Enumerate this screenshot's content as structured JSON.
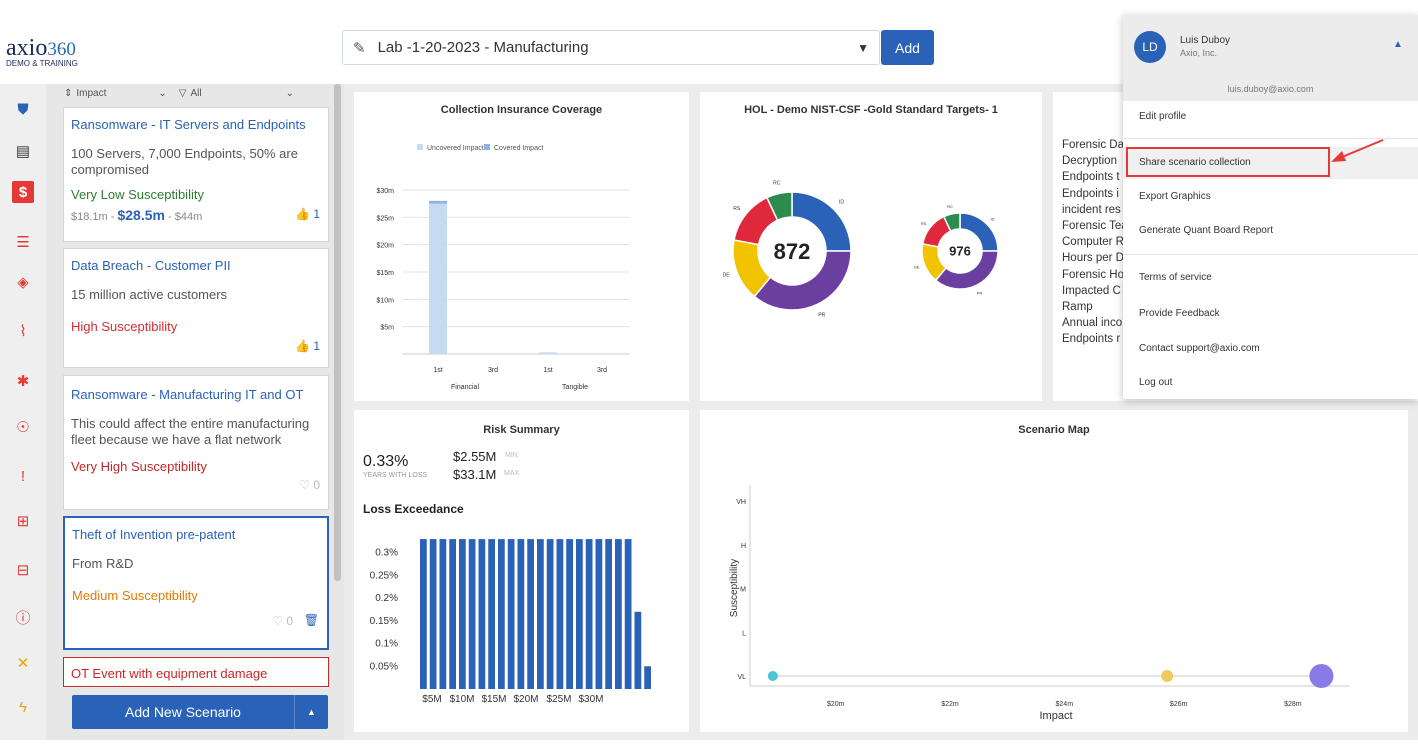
{
  "logo": {
    "brand": "axio",
    "number": "360",
    "subtitle": "DEMO & TRAINING"
  },
  "collection": {
    "selected": "Lab -1-20-2023 - Manufacturing",
    "add_label": "Add"
  },
  "filters": {
    "sort": "Impact",
    "filter": "All"
  },
  "scenarios": [
    {
      "title": "Ransomware - IT Servers and Endpoints",
      "desc": "100 Servers, 7,000 Endpoints, 50% are compromised",
      "susc": "Very Low Susceptibility",
      "susc_color": "#2e7d32",
      "r_min": "$18.1m",
      "r_mid": "$28.5m",
      "r_max": "$44m",
      "likes": "1"
    },
    {
      "title": "Data Breach - Customer PII",
      "desc": "15 million active customers",
      "susc": "High Susceptibility",
      "susc_color": "#d32f2f",
      "likes": "1"
    },
    {
      "title": "Ransomware - Manufacturing IT and OT",
      "desc": "This could affect the entire manufacturing fleet because we have a flat network",
      "susc": "Very High Susceptibility",
      "susc_color": "#c62828",
      "likes": "0"
    },
    {
      "title": "Theft of Invention pre-patent",
      "desc": "From R&D",
      "susc": "Medium Susceptibility",
      "susc_color": "#e07b00",
      "likes": "0"
    },
    {
      "title": "OT Event with equipment damage"
    }
  ],
  "add_scenario_label": "Add New Scenario",
  "insurance": {
    "title": "Collection Insurance Coverage",
    "chart_data": {
      "type": "bar",
      "title": "Collection Insurance Coverage",
      "legend": [
        "Uncovered Impact",
        "Covered Impact"
      ],
      "yticks": [
        "$30m",
        "$25m",
        "$20m",
        "$15m",
        "$10m",
        "$5m"
      ],
      "ylim": [
        0,
        32
      ],
      "groups": [
        "Financial",
        "Tangible"
      ],
      "categories": [
        "1st",
        "3rd",
        "1st",
        "3rd"
      ],
      "series": [
        {
          "name": "Uncovered Impact",
          "values": [
            27.5,
            0,
            0.3,
            0
          ]
        },
        {
          "name": "Covered Impact",
          "values": [
            0.5,
            0,
            0,
            0
          ]
        }
      ]
    }
  },
  "nist": {
    "title": "HOL - Demo NIST-CSF -Gold Standard Targets- 1",
    "score1": "872",
    "score2": "976",
    "chart_data": {
      "type": "pie",
      "categories": [
        "ID",
        "PR",
        "DE",
        "RS",
        "RC"
      ],
      "values": [
        25,
        36,
        17,
        15,
        7
      ],
      "colors": [
        "#2a62b8",
        "#6a3fa0",
        "#f2c300",
        "#e0283c",
        "#2e8b4e"
      ]
    }
  },
  "legend_list": [
    "Forensic Da",
    "Decryption",
    "Endpoints t",
    "Endpoints i",
    "incident res",
    "Forensic Tea",
    "Computer R",
    "Hours per D",
    "Forensic Ho",
    "Impacted C",
    "Ramp",
    "Annual inco",
    "Endpoints r"
  ],
  "risk": {
    "title": "Risk Summary",
    "pct": "0.33%",
    "pct_label": "YEARS WITH LOSS",
    "min": "$2.55M",
    "min_label": "MIN",
    "max": "$33.1M",
    "max_label": "MAX",
    "exceed_title": "Loss Exceedance",
    "chart_data": {
      "type": "bar",
      "title": "Loss Exceedance",
      "yticks": [
        "0.3%",
        "0.25%",
        "0.2%",
        "0.15%",
        "0.1%",
        "0.05%"
      ],
      "ylim": [
        0,
        0.35
      ],
      "xticks": [
        "$5M",
        "$10M",
        "$15M",
        "$20M",
        "$25M",
        "$30M"
      ],
      "values": [
        0.33,
        0.33,
        0.33,
        0.33,
        0.33,
        0.33,
        0.33,
        0.33,
        0.33,
        0.33,
        0.33,
        0.33,
        0.33,
        0.33,
        0.33,
        0.33,
        0.33,
        0.33,
        0.33,
        0.33,
        0.33,
        0.33,
        0.17,
        0.05
      ]
    }
  },
  "scenario_map": {
    "title": "Scenario Map",
    "chart_data": {
      "type": "scatter",
      "xlabel": "Impact",
      "ylabel": "Susceptibility",
      "xticks": [
        "$20m",
        "$22m",
        "$24m",
        "$26m",
        "$28m"
      ],
      "xlim": [
        18.5,
        29
      ],
      "yticks": [
        "VH",
        "H",
        "M",
        "L",
        "VL"
      ],
      "points": [
        {
          "x": 18.9,
          "y": "VL",
          "size": 5,
          "color": "#4cc4d4"
        },
        {
          "x": 25.8,
          "y": "VL",
          "size": 6,
          "color": "#f2c860"
        },
        {
          "x": 28.5,
          "y": "VL",
          "size": 12,
          "color": "#8a7ae8"
        }
      ]
    }
  },
  "user_menu": {
    "initials": "LD",
    "name": "Luis Duboy",
    "company": "Axio, Inc.",
    "email": "luis.duboy@axio.com",
    "items": [
      "Edit profile",
      "Share scenario collection",
      "Export Graphics",
      "Generate Quant Board Report",
      "Terms of service",
      "Provide Feedback",
      "Contact support@axio.com",
      "Log out"
    ]
  }
}
